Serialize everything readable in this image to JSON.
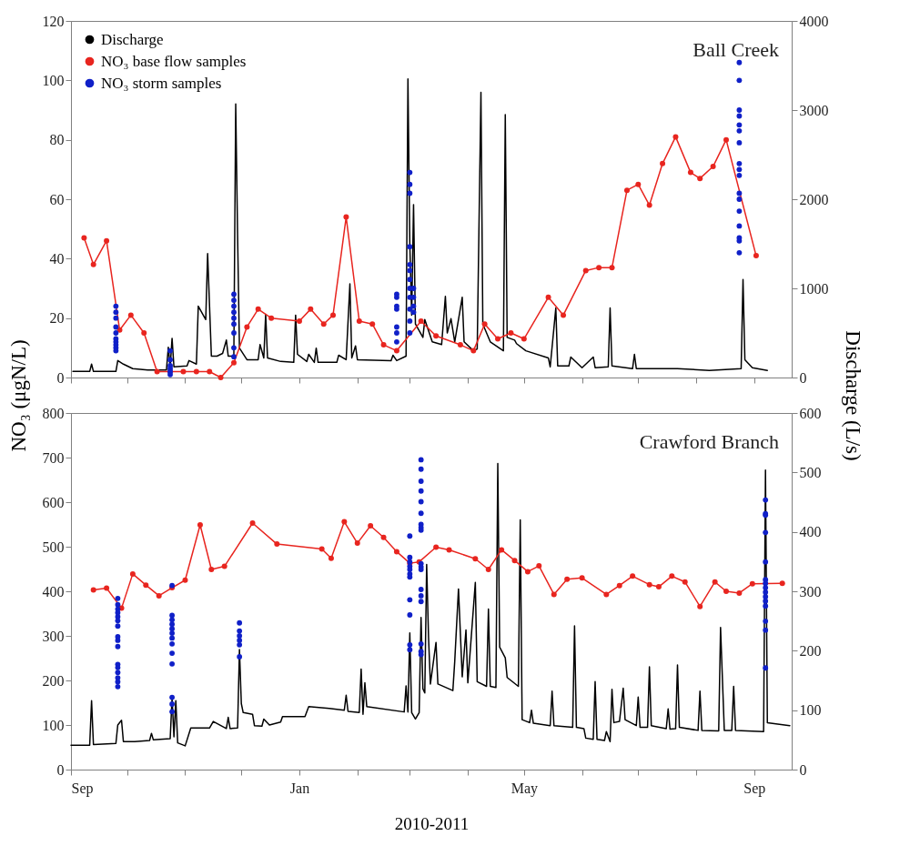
{
  "chart_data": [
    {
      "type": "line",
      "title": "Ball Creek",
      "ylabel": "NO₃ (μgN/L)",
      "y2label": "Discharge (L/s)",
      "legend": "top left",
      "tick_labels": "y",
      "xlim": [
        "2010-09-01",
        "2011-09-21"
      ],
      "xticks": [
        {
          "value": "2010-09-01",
          "label": null
        },
        {
          "value": "2010-10-01",
          "label": null
        },
        {
          "value": "2010-11-01",
          "label": null
        },
        {
          "value": "2010-12-01",
          "label": null
        },
        {
          "value": "2011-01-01",
          "label": null
        },
        {
          "value": "2011-02-01",
          "label": null
        },
        {
          "value": "2011-03-01",
          "label": null
        },
        {
          "value": "2011-04-01",
          "label": null
        },
        {
          "value": "2011-05-01",
          "label": null
        },
        {
          "value": "2011-06-01",
          "label": null
        },
        {
          "value": "2011-07-01",
          "label": null
        },
        {
          "value": "2011-08-01",
          "label": null
        },
        {
          "value": "2011-09-01",
          "label": null
        }
      ],
      "ylim": [
        0,
        120
      ],
      "yticks": [
        0,
        20,
        40,
        60,
        80,
        100,
        120
      ],
      "y2lim": [
        0,
        4000
      ],
      "y2ticks": [
        0,
        1000,
        2000,
        3000,
        4000
      ],
      "series": [
        {
          "name": "Discharge",
          "axis": "y2",
          "color": "#000000",
          "x": [
            "2010-09-02",
            "2010-09-11",
            "2010-09-12",
            "2010-09-13",
            "2010-09-25",
            "2010-09-26",
            "2010-09-29",
            "2010-10-04",
            "2010-10-12",
            "2010-10-22",
            "2010-10-23",
            "2010-10-24",
            "2010-10-25",
            "2010-10-26",
            "2010-11-02",
            "2010-11-03",
            "2010-11-07",
            "2010-11-08",
            "2010-11-12",
            "2010-11-13",
            "2010-11-15",
            "2010-11-18",
            "2010-11-21",
            "2010-11-23",
            "2010-11-24",
            "2010-11-27",
            "2010-11-28",
            "2010-11-29",
            "2010-11-30",
            "2010-12-04",
            "2010-12-10",
            "2010-12-11",
            "2010-12-13",
            "2010-12-14",
            "2010-12-15",
            "2010-12-22",
            "2010-12-29",
            "2010-12-30",
            "2010-12-31",
            "2011-01-05",
            "2011-01-06",
            "2011-01-09",
            "2011-01-10",
            "2011-01-11",
            "2011-01-21",
            "2011-01-22",
            "2011-01-26",
            "2011-01-28",
            "2011-01-29",
            "2011-01-31",
            "2011-02-01",
            "2011-02-19",
            "2011-02-20",
            "2011-02-22",
            "2011-02-27",
            "2011-02-28",
            "2011-03-01",
            "2011-03-02",
            "2011-03-03",
            "2011-03-04",
            "2011-03-08",
            "2011-03-09",
            "2011-03-13",
            "2011-03-18",
            "2011-03-20",
            "2011-03-21",
            "2011-03-23",
            "2011-03-25",
            "2011-03-29",
            "2011-03-30",
            "2011-04-04",
            "2011-04-06",
            "2011-04-08",
            "2011-04-09",
            "2011-04-13",
            "2011-04-20",
            "2011-04-21",
            "2011-04-22",
            "2011-04-26",
            "2011-04-27",
            "2011-05-02",
            "2011-05-14",
            "2011-05-15",
            "2011-05-18",
            "2011-05-19",
            "2011-05-25",
            "2011-05-26",
            "2011-06-01",
            "2011-06-07",
            "2011-06-08",
            "2011-06-15",
            "2011-06-16",
            "2011-06-17",
            "2011-06-28",
            "2011-06-29",
            "2011-06-30",
            "2011-07-22",
            "2011-08-08",
            "2011-08-25",
            "2011-08-26",
            "2011-08-27",
            "2011-08-31",
            "2011-09-08"
          ],
          "values": [
            68,
            68,
            150,
            68,
            68,
            190,
            150,
            100,
            85,
            85,
            340,
            120,
            440,
            120,
            130,
            190,
            150,
            800,
            650,
            1390,
            240,
            240,
            270,
            420,
            240,
            240,
            3070,
            1600,
            330,
            200,
            200,
            370,
            220,
            710,
            220,
            180,
            170,
            700,
            260,
            180,
            260,
            170,
            330,
            170,
            170,
            250,
            200,
            1050,
            220,
            355,
            200,
            190,
            250,
            190,
            240,
            3350,
            1500,
            700,
            1940,
            600,
            450,
            650,
            400,
            370,
            910,
            500,
            660,
            400,
            900,
            400,
            300,
            320,
            3200,
            600,
            400,
            300,
            2950,
            450,
            420,
            380,
            300,
            220,
            120,
            780,
            130,
            130,
            230,
            110,
            230,
            110,
            120,
            780,
            130,
            100,
            260,
            100,
            100,
            80,
            100,
            1100,
            200,
            110,
            80
          ]
        },
        {
          "name": "NO₃ base flow samples",
          "marker": "circle",
          "color": "#e8251f",
          "x": [
            "2010-09-08",
            "2010-09-13",
            "2010-09-20",
            "2010-09-27",
            "2010-10-03",
            "2010-10-10",
            "2010-10-17",
            "2010-10-24",
            "2010-10-31",
            "2010-11-07",
            "2010-11-14",
            "2010-11-20",
            "2010-11-27",
            "2010-12-04",
            "2010-12-10",
            "2010-12-17",
            "2011-01-01",
            "2011-01-07",
            "2011-01-14",
            "2011-01-19",
            "2011-01-26",
            "2011-02-02",
            "2011-02-09",
            "2011-02-15",
            "2011-02-22",
            "2011-03-07",
            "2011-03-15",
            "2011-03-28",
            "2011-04-04",
            "2011-04-10",
            "2011-04-17",
            "2011-04-24",
            "2011-05-01",
            "2011-05-14",
            "2011-05-22",
            "2011-06-03",
            "2011-06-10",
            "2011-06-17",
            "2011-06-25",
            "2011-07-01",
            "2011-07-07",
            "2011-07-14",
            "2011-07-21",
            "2011-07-29",
            "2011-08-03",
            "2011-08-10",
            "2011-08-17",
            "2011-09-02"
          ],
          "values": [
            47,
            38,
            46,
            16,
            21,
            15,
            2,
            2,
            2,
            2,
            2,
            0,
            5,
            17,
            23,
            20,
            19,
            23,
            18,
            21,
            54,
            19,
            18,
            11,
            9,
            19,
            14,
            11,
            9,
            18,
            13,
            15,
            13,
            27,
            21,
            36,
            37,
            37,
            63,
            65,
            58,
            72,
            81,
            69,
            67,
            71,
            80,
            41
          ]
        },
        {
          "name": "NO₃ storm samples",
          "type": "scatter",
          "marker": "circle",
          "color": "#1020c8",
          "x": [
            "2010-09-25",
            "2010-09-25",
            "2010-09-25",
            "2010-09-25",
            "2010-09-25",
            "2010-09-25",
            "2010-09-25",
            "2010-09-25",
            "2010-09-25",
            "2010-09-25",
            "2010-10-24",
            "2010-10-24",
            "2010-10-24",
            "2010-10-24",
            "2010-10-24",
            "2010-10-24",
            "2010-11-27",
            "2010-11-27",
            "2010-11-27",
            "2010-11-27",
            "2010-11-27",
            "2010-11-27",
            "2010-11-27",
            "2010-11-27",
            "2010-11-27",
            "2011-02-22",
            "2011-02-22",
            "2011-02-22",
            "2011-02-22",
            "2011-02-22",
            "2011-02-22",
            "2011-02-22",
            "2011-03-01",
            "2011-03-01",
            "2011-03-01",
            "2011-03-01",
            "2011-03-01",
            "2011-03-01",
            "2011-03-01",
            "2011-03-01",
            "2011-03-01",
            "2011-03-01",
            "2011-03-01",
            "2011-03-01",
            "2011-03-03",
            "2011-03-03",
            "2011-03-03",
            "2011-03-03",
            "2011-08-24",
            "2011-08-24",
            "2011-08-24",
            "2011-08-24",
            "2011-08-24",
            "2011-08-24",
            "2011-08-24",
            "2011-08-24",
            "2011-08-24",
            "2011-08-24",
            "2011-08-24",
            "2011-08-24",
            "2011-08-24",
            "2011-08-24",
            "2011-08-24",
            "2011-08-24",
            "2011-08-24"
          ],
          "values": [
            24,
            22,
            20,
            17,
            15,
            13,
            12,
            11,
            10,
            9,
            9,
            6,
            4,
            3,
            2,
            1,
            28,
            26,
            24,
            22,
            20,
            18,
            15,
            10,
            7,
            28,
            27,
            24,
            23,
            17,
            15,
            12,
            69,
            65,
            62,
            44,
            38,
            36,
            33,
            30,
            27,
            23,
            19,
            15,
            30,
            27,
            24,
            22,
            106,
            100,
            90,
            88,
            85,
            83,
            79,
            72,
            70,
            68,
            62,
            60,
            56,
            51,
            47,
            46,
            42
          ]
        }
      ]
    },
    {
      "type": "line",
      "title": "Crawford  Branch",
      "xlabel": "2010-2011",
      "xlim": [
        "2010-09-01",
        "2011-09-21"
      ],
      "xticks": [
        {
          "value": "2010-09-01",
          "label": "Sep"
        },
        {
          "value": "2010-10-01",
          "label": null
        },
        {
          "value": "2010-11-01",
          "label": null
        },
        {
          "value": "2010-12-01",
          "label": null
        },
        {
          "value": "2011-01-01",
          "label": "Jan"
        },
        {
          "value": "2011-02-01",
          "label": null
        },
        {
          "value": "2011-03-01",
          "label": null
        },
        {
          "value": "2011-04-01",
          "label": null
        },
        {
          "value": "2011-05-01",
          "label": "May"
        },
        {
          "value": "2011-06-01",
          "label": null
        },
        {
          "value": "2011-07-01",
          "label": null
        },
        {
          "value": "2011-08-01",
          "label": null
        },
        {
          "value": "2011-09-01",
          "label": "Sep"
        }
      ],
      "ylim": [
        0,
        800
      ],
      "yticks": [
        0,
        100,
        200,
        300,
        400,
        500,
        600,
        700,
        800
      ],
      "y2lim": [
        0,
        600
      ],
      "y2ticks": [
        0,
        100,
        200,
        300,
        400,
        500,
        600
      ],
      "series": [
        {
          "axis": "y2",
          "color": "#000000",
          "x": [
            "2010-09-01",
            "2010-09-11",
            "2010-09-12",
            "2010-09-13",
            "2010-09-25",
            "2010-09-26",
            "2010-09-28",
            "2010-09-29",
            "2010-10-05",
            "2010-10-13",
            "2010-10-14",
            "2010-10-15",
            "2010-10-24",
            "2010-10-25",
            "2010-10-26",
            "2010-10-27",
            "2010-10-28",
            "2010-11-01",
            "2010-11-04",
            "2010-11-14",
            "2010-11-16",
            "2010-11-23",
            "2010-11-24",
            "2010-11-25",
            "2010-11-29",
            "2010-11-30",
            "2010-12-01",
            "2010-12-02",
            "2010-12-07",
            "2010-12-08",
            "2010-12-12",
            "2010-12-13",
            "2010-12-16",
            "2010-12-22",
            "2010-12-23",
            "2011-01-04",
            "2011-01-06",
            "2011-01-17",
            "2011-01-25",
            "2011-01-26",
            "2011-01-27",
            "2011-02-02",
            "2011-02-03",
            "2011-02-04",
            "2011-02-05",
            "2011-02-06",
            "2011-02-26",
            "2011-02-27",
            "2011-02-28",
            "2011-03-01",
            "2011-03-02",
            "2011-03-04",
            "2011-03-06",
            "2011-03-07",
            "2011-03-08",
            "2011-03-09",
            "2011-03-10",
            "2011-03-11",
            "2011-03-12",
            "2011-03-15",
            "2011-03-16",
            "2011-03-24",
            "2011-03-25",
            "2011-03-27",
            "2011-03-29",
            "2011-03-31",
            "2011-04-01",
            "2011-04-05",
            "2011-04-06",
            "2011-04-11",
            "2011-04-12",
            "2011-04-13",
            "2011-04-16",
            "2011-04-17",
            "2011-04-18",
            "2011-04-21",
            "2011-04-22",
            "2011-04-28",
            "2011-04-29",
            "2011-04-30",
            "2011-05-04",
            "2011-05-05",
            "2011-05-06",
            "2011-05-15",
            "2011-05-16",
            "2011-05-17",
            "2011-05-27",
            "2011-05-28",
            "2011-05-29",
            "2011-06-02",
            "2011-06-03",
            "2011-06-07",
            "2011-06-08",
            "2011-06-09",
            "2011-06-13",
            "2011-06-14",
            "2011-06-16",
            "2011-06-17",
            "2011-06-18",
            "2011-06-21",
            "2011-06-23",
            "2011-06-24",
            "2011-06-30",
            "2011-07-01",
            "2011-07-02",
            "2011-07-06",
            "2011-07-07",
            "2011-07-08",
            "2011-07-16",
            "2011-07-17",
            "2011-07-18",
            "2011-07-21",
            "2011-07-22",
            "2011-07-23",
            "2011-08-02",
            "2011-08-03",
            "2011-08-04",
            "2011-08-13",
            "2011-08-14",
            "2011-08-16",
            "2011-08-20",
            "2011-08-21",
            "2011-08-22",
            "2011-09-06",
            "2011-09-07",
            "2011-09-08",
            "2011-09-20"
          ],
          "values": [
            41,
            41,
            116,
            42,
            44,
            75,
            83,
            47,
            47,
            49,
            61,
            50,
            52,
            121,
            55,
            116,
            45,
            40,
            70,
            70,
            81,
            69,
            88,
            69,
            70,
            202,
            111,
            96,
            93,
            74,
            73,
            85,
            75,
            80,
            89,
            89,
            106,
            103,
            100,
            125,
            98,
            96,
            169,
            93,
            146,
            106,
            97,
            141,
            97,
            230,
            96,
            85,
            96,
            256,
            136,
            129,
            345,
            223,
            144,
            214,
            144,
            133,
            182,
            304,
            156,
            235,
            146,
            315,
            148,
            140,
            270,
            140,
            138,
            515,
            206,
            188,
            155,
            140,
            420,
            84,
            79,
            100,
            78,
            74,
            132,
            74,
            71,
            242,
            71,
            69,
            53,
            51,
            148,
            51,
            49,
            64,
            47,
            135,
            79,
            81,
            137,
            84,
            74,
            122,
            71,
            71,
            173,
            74,
            69,
            102,
            68,
            69,
            176,
            71,
            66,
            132,
            66,
            65,
            239,
            66,
            66,
            140,
            66,
            64,
            504,
            79,
            74
          ]
        },
        {
          "marker": "circle",
          "color": "#e8251f",
          "x": [
            "2010-09-13",
            "2010-09-20",
            "2010-09-28",
            "2010-10-04",
            "2010-10-11",
            "2010-10-18",
            "2010-10-25",
            "2010-11-01",
            "2010-11-09",
            "2010-11-15",
            "2010-11-22",
            "2010-12-07",
            "2010-12-20",
            "2011-01-13",
            "2011-01-18",
            "2011-01-25",
            "2011-02-01",
            "2011-02-08",
            "2011-02-15",
            "2011-02-22",
            "2011-03-01",
            "2011-03-06",
            "2011-03-15",
            "2011-03-22",
            "2011-04-05",
            "2011-04-12",
            "2011-04-19",
            "2011-04-26",
            "2011-05-03",
            "2011-05-09",
            "2011-05-17",
            "2011-05-24",
            "2011-06-01",
            "2011-06-14",
            "2011-06-21",
            "2011-06-28",
            "2011-07-07",
            "2011-07-12",
            "2011-07-19",
            "2011-07-26",
            "2011-08-03",
            "2011-08-11",
            "2011-08-17",
            "2011-08-24",
            "2011-08-31",
            "2011-09-16"
          ],
          "values": [
            403,
            407,
            362,
            439,
            414,
            390,
            408,
            425,
            549,
            449,
            456,
            553,
            506,
            495,
            474,
            556,
            508,
            547,
            521,
            489,
            463,
            466,
            499,
            493,
            473,
            449,
            493,
            469,
            444,
            457,
            393,
            427,
            430,
            393,
            413,
            434,
            415,
            410,
            434,
            421,
            366,
            421,
            400,
            396,
            417,
            418
          ]
        },
        {
          "type": "scatter",
          "marker": "circle",
          "color": "#1020c8",
          "x": [
            "2010-09-26",
            "2010-09-26",
            "2010-09-26",
            "2010-09-26",
            "2010-09-26",
            "2010-09-26",
            "2010-09-26",
            "2010-09-26",
            "2010-09-26",
            "2010-09-26",
            "2010-09-26",
            "2010-09-26",
            "2010-09-26",
            "2010-09-26",
            "2010-09-26",
            "2010-09-26",
            "2010-10-25",
            "2010-10-25",
            "2010-10-25",
            "2010-10-25",
            "2010-10-25",
            "2010-10-25",
            "2010-10-25",
            "2010-10-25",
            "2010-10-25",
            "2010-10-25",
            "2010-10-25",
            "2010-10-25",
            "2010-10-25",
            "2010-11-30",
            "2010-11-30",
            "2010-11-30",
            "2010-11-30",
            "2010-11-30",
            "2010-11-30",
            "2011-03-01",
            "2011-03-01",
            "2011-03-01",
            "2011-03-01",
            "2011-03-01",
            "2011-03-01",
            "2011-03-01",
            "2011-03-01",
            "2011-03-01",
            "2011-03-01",
            "2011-03-01",
            "2011-03-07",
            "2011-03-07",
            "2011-03-07",
            "2011-03-07",
            "2011-03-07",
            "2011-03-07",
            "2011-03-07",
            "2011-03-07",
            "2011-03-07",
            "2011-03-07",
            "2011-03-07",
            "2011-03-07",
            "2011-03-07",
            "2011-03-07",
            "2011-03-07",
            "2011-03-07",
            "2011-03-07",
            "2011-03-07",
            "2011-09-07",
            "2011-09-07",
            "2011-09-07",
            "2011-09-07",
            "2011-09-07",
            "2011-09-07",
            "2011-09-07",
            "2011-09-07",
            "2011-09-07",
            "2011-09-07",
            "2011-09-07",
            "2011-09-07",
            "2011-09-07",
            "2011-09-07",
            "2011-09-07"
          ],
          "values": [
            384,
            370,
            360,
            352,
            343,
            334,
            322,
            298,
            290,
            276,
            236,
            229,
            218,
            206,
            197,
            186,
            413,
            346,
            336,
            326,
            316,
            306,
            295,
            282,
            261,
            237,
            162,
            147,
            130,
            329,
            311,
            300,
            290,
            280,
            253,
            524,
            476,
            466,
            456,
            449,
            439,
            432,
            381,
            347,
            280,
            269,
            695,
            674,
            647,
            625,
            601,
            575,
            550,
            543,
            537,
            462,
            455,
            449,
            404,
            390,
            377,
            282,
            265,
            258,
            605,
            574,
            571,
            532,
            466,
            426,
            418,
            408,
            398,
            388,
            378,
            367,
            333,
            313,
            228
          ]
        }
      ]
    }
  ]
}
